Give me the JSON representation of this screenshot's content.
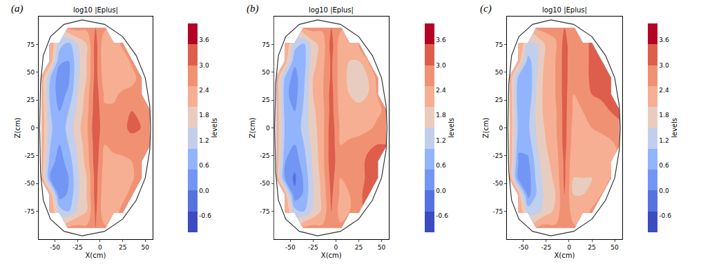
{
  "chart_data": [
    {
      "type": "contour",
      "panel": "(a)",
      "title": "log10 |Eplus|",
      "x_label": "X(cm)",
      "y_label": "Z(cm)",
      "xlim": [
        -68,
        58
      ],
      "ylim": [
        -100,
        100
      ],
      "xticks": [
        -50,
        -25,
        0,
        25,
        50
      ],
      "yticks": [
        -75,
        -50,
        -25,
        0,
        25,
        50,
        75
      ],
      "x": [
        -65,
        -55,
        -45,
        -35,
        -25,
        -15,
        -5,
        5,
        15,
        25,
        35,
        45,
        55
      ],
      "y": [
        -90,
        -75,
        -60,
        -45,
        -30,
        -15,
        0,
        15,
        30,
        45,
        60,
        75,
        90
      ],
      "cells": [
        [
          null,
          null,
          null,
          2.6,
          2.7,
          2.6,
          3.0,
          2.6,
          null,
          null,
          null,
          null,
          null
        ],
        [
          null,
          2.5,
          1.3,
          1.0,
          1.6,
          2.0,
          3.1,
          2.1,
          2.2,
          2.7,
          null,
          null,
          null
        ],
        [
          null,
          2.3,
          0.2,
          0.6,
          1.4,
          2.0,
          3.2,
          2.1,
          2.1,
          2.3,
          2.7,
          null,
          null
        ],
        [
          2.4,
          0.4,
          0.0,
          0.5,
          1.4,
          2.0,
          3.2,
          2.2,
          2.2,
          2.3,
          2.4,
          2.8,
          null
        ],
        [
          2.4,
          0.7,
          0.3,
          0.7,
          1.5,
          2.2,
          3.3,
          2.3,
          2.4,
          2.4,
          2.5,
          2.7,
          null
        ],
        [
          2.4,
          1.0,
          0.5,
          1.0,
          1.6,
          2.3,
          3.3,
          2.5,
          2.6,
          2.7,
          2.8,
          2.8,
          2.7
        ],
        [
          2.4,
          1.1,
          0.6,
          1.2,
          1.8,
          2.4,
          3.4,
          2.6,
          2.7,
          2.9,
          3.1,
          3.0,
          2.8
        ],
        [
          2.4,
          1.0,
          0.5,
          1.0,
          1.6,
          2.3,
          3.3,
          2.6,
          2.6,
          2.8,
          3.0,
          2.9,
          2.7
        ],
        [
          2.4,
          0.8,
          0.3,
          0.6,
          1.5,
          2.2,
          3.3,
          2.4,
          2.4,
          2.6,
          2.7,
          2.8,
          null
        ],
        [
          2.4,
          1.0,
          0.2,
          0.4,
          1.4,
          2.0,
          3.2,
          2.2,
          2.1,
          2.2,
          2.3,
          2.7,
          null
        ],
        [
          null,
          2.3,
          0.6,
          0.5,
          1.3,
          2.0,
          3.2,
          2.1,
          2.0,
          2.2,
          2.6,
          null,
          null
        ],
        [
          null,
          2.5,
          1.2,
          0.8,
          1.5,
          2.0,
          3.2,
          2.1,
          2.2,
          2.6,
          null,
          null,
          null
        ],
        [
          null,
          null,
          null,
          2.6,
          2.7,
          2.6,
          3.0,
          2.6,
          null,
          null,
          null,
          null,
          null
        ]
      ],
      "colorbar": {
        "title": "levels",
        "range": [
          -1.0,
          4.0
        ],
        "ticks": [
          -0.6,
          {
            "value": 0,
            "label": "0.0"
          },
          0.6,
          1.2,
          1.8,
          2.4,
          {
            "value": 3,
            "label": "3.0"
          },
          3.6
        ]
      },
      "boundary": {
        "x": [
          56,
          55,
          50,
          40,
          25,
          5,
          -20,
          -40,
          -55,
          -63,
          -66,
          -67,
          -66,
          -63,
          -55,
          -40,
          -20,
          5,
          25,
          40,
          50,
          55
        ],
        "y": [
          0,
          20,
          45,
          65,
          82,
          93,
          97,
          93,
          82,
          65,
          40,
          0,
          -40,
          -65,
          -82,
          -93,
          -97,
          -93,
          -82,
          -65,
          -45,
          -20
        ]
      }
    },
    {
      "type": "contour",
      "panel": "(b)",
      "title": "log10 |Eplus|",
      "x_label": "X(cm)",
      "y_label": "Z(cm)",
      "xlim": [
        -68,
        58
      ],
      "ylim": [
        -100,
        100
      ],
      "xticks": [
        -50,
        -25,
        0,
        25,
        50
      ],
      "yticks": [
        -75,
        -50,
        -25,
        0,
        25,
        50,
        75
      ],
      "x": [
        -65,
        -55,
        -45,
        -35,
        -25,
        -15,
        -5,
        5,
        15,
        25,
        35,
        45,
        55
      ],
      "y": [
        -90,
        -75,
        -60,
        -45,
        -30,
        -15,
        0,
        15,
        30,
        45,
        60,
        75,
        90
      ],
      "cells": [
        [
          null,
          null,
          null,
          2.6,
          2.7,
          2.6,
          2.9,
          2.6,
          null,
          null,
          null,
          null,
          null
        ],
        [
          null,
          2.5,
          1.2,
          1.0,
          1.6,
          2.1,
          3.0,
          2.3,
          2.5,
          2.9,
          null,
          null,
          null
        ],
        [
          null,
          2.2,
          0.1,
          0.6,
          1.5,
          2.1,
          3.1,
          2.4,
          2.5,
          2.8,
          3.3,
          null,
          null
        ],
        [
          2.4,
          0.3,
          -0.1,
          0.6,
          1.5,
          2.2,
          3.2,
          2.5,
          2.6,
          2.8,
          3.1,
          3.4,
          null
        ],
        [
          2.4,
          0.5,
          0.2,
          0.8,
          1.6,
          2.3,
          3.3,
          2.6,
          2.7,
          2.8,
          3.1,
          3.3,
          null
        ],
        [
          2.4,
          0.7,
          0.5,
          1.0,
          1.7,
          2.3,
          3.3,
          2.5,
          2.6,
          2.7,
          2.9,
          3.0,
          3.0
        ],
        [
          2.4,
          0.8,
          0.6,
          1.2,
          1.8,
          2.3,
          3.3,
          2.4,
          2.3,
          2.3,
          2.4,
          2.6,
          2.8
        ],
        [
          2.4,
          0.7,
          0.5,
          1.1,
          1.9,
          2.3,
          3.2,
          2.3,
          2.1,
          2.1,
          2.2,
          2.4,
          2.6
        ],
        [
          2.4,
          0.6,
          0.3,
          1.0,
          2.0,
          2.4,
          3.2,
          2.2,
          2.0,
          1.9,
          2.0,
          2.5,
          null
        ],
        [
          2.4,
          0.8,
          0.3,
          0.9,
          2.0,
          2.4,
          3.1,
          2.2,
          1.9,
          1.9,
          2.0,
          2.6,
          null
        ],
        [
          null,
          2.2,
          0.6,
          0.8,
          1.8,
          2.3,
          3.1,
          2.2,
          2.0,
          2.0,
          2.5,
          null,
          null
        ],
        [
          null,
          2.5,
          1.2,
          0.9,
          1.8,
          2.2,
          3.2,
          2.2,
          2.2,
          2.5,
          null,
          null,
          null
        ],
        [
          null,
          null,
          null,
          2.6,
          2.7,
          2.6,
          3.0,
          2.6,
          null,
          null,
          null,
          null,
          null
        ]
      ],
      "colorbar": {
        "title": "levels",
        "range": [
          -1.0,
          4.0
        ],
        "ticks": [
          -0.6,
          {
            "value": 0,
            "label": "0.0"
          },
          0.6,
          1.2,
          1.8,
          2.4,
          {
            "value": 3,
            "label": "3.0"
          },
          3.6
        ]
      },
      "boundary": {
        "x": [
          56,
          55,
          50,
          40,
          25,
          5,
          -20,
          -40,
          -55,
          -63,
          -66,
          -67,
          -66,
          -63,
          -55,
          -40,
          -20,
          5,
          25,
          40,
          50,
          55
        ],
        "y": [
          0,
          20,
          45,
          65,
          82,
          93,
          97,
          93,
          82,
          65,
          40,
          0,
          -40,
          -65,
          -82,
          -93,
          -97,
          -93,
          -82,
          -65,
          -45,
          -20
        ]
      }
    },
    {
      "type": "contour",
      "panel": "(c)",
      "title": "log10 |Eplus|",
      "x_label": "X(cm)",
      "y_label": "Z(cm)",
      "xlim": [
        -68,
        58
      ],
      "ylim": [
        -100,
        100
      ],
      "xticks": [
        -50,
        -25,
        0,
        25,
        50
      ],
      "yticks": [
        -75,
        -50,
        -25,
        0,
        25,
        50,
        75
      ],
      "x": [
        -65,
        -55,
        -45,
        -35,
        -25,
        -15,
        -5,
        5,
        15,
        25,
        35,
        45,
        55
      ],
      "y": [
        -90,
        -75,
        -60,
        -45,
        -30,
        -15,
        0,
        15,
        30,
        45,
        60,
        75,
        90
      ],
      "cells": [
        [
          null,
          null,
          null,
          2.6,
          2.7,
          2.6,
          2.9,
          2.6,
          null,
          null,
          null,
          null,
          null
        ],
        [
          null,
          2.5,
          1.3,
          1.3,
          1.8,
          2.1,
          3.0,
          2.2,
          2.2,
          2.6,
          null,
          null,
          null
        ],
        [
          null,
          2.2,
          0.3,
          1.1,
          1.7,
          2.0,
          3.0,
          2.0,
          2.0,
          2.1,
          2.5,
          null,
          null
        ],
        [
          2.4,
          0.2,
          0.2,
          1.2,
          1.8,
          2.1,
          3.1,
          2.0,
          2.0,
          2.0,
          2.1,
          2.5,
          null
        ],
        [
          2.4,
          0.4,
          0.4,
          1.3,
          1.9,
          2.2,
          3.1,
          2.1,
          2.1,
          2.1,
          2.2,
          2.4,
          null
        ],
        [
          2.4,
          0.6,
          0.7,
          1.5,
          2.0,
          2.3,
          3.2,
          2.2,
          2.2,
          2.3,
          2.3,
          2.4,
          2.6
        ],
        [
          2.4,
          0.8,
          0.9,
          1.6,
          2.1,
          2.4,
          3.2,
          2.3,
          2.4,
          2.5,
          2.6,
          2.7,
          2.9
        ],
        [
          2.4,
          0.7,
          0.8,
          1.7,
          2.2,
          2.4,
          3.2,
          2.4,
          2.5,
          2.7,
          2.8,
          3.0,
          3.1
        ],
        [
          2.4,
          0.6,
          0.6,
          1.6,
          2.3,
          2.5,
          3.2,
          2.5,
          2.7,
          3.0,
          3.1,
          3.3,
          null
        ],
        [
          2.4,
          0.8,
          0.6,
          1.5,
          2.3,
          2.5,
          3.2,
          2.6,
          2.8,
          3.1,
          3.3,
          3.4,
          null
        ],
        [
          null,
          2.2,
          0.8,
          1.4,
          2.2,
          2.5,
          3.2,
          2.6,
          2.8,
          3.1,
          3.3,
          null,
          null
        ],
        [
          null,
          2.5,
          1.4,
          1.5,
          2.1,
          2.4,
          3.2,
          2.6,
          2.8,
          3.1,
          null,
          null,
          null
        ],
        [
          null,
          null,
          null,
          2.6,
          2.7,
          2.7,
          3.0,
          2.8,
          null,
          null,
          null,
          null,
          null
        ]
      ],
      "colorbar": {
        "title": "levels",
        "range": [
          -1.0,
          4.0
        ],
        "ticks": [
          -0.6,
          {
            "value": 0,
            "label": "0.0"
          },
          0.6,
          1.2,
          1.8,
          2.4,
          {
            "value": 3,
            "label": "3.0"
          },
          3.6
        ]
      },
      "boundary": {
        "x": [
          56,
          55,
          50,
          40,
          25,
          5,
          -20,
          -40,
          -55,
          -63,
          -66,
          -67,
          -66,
          -63,
          -55,
          -40,
          -20,
          5,
          25,
          40,
          50,
          55
        ],
        "y": [
          0,
          20,
          45,
          65,
          82,
          93,
          97,
          93,
          82,
          65,
          40,
          0,
          -40,
          -65,
          -82,
          -93,
          -97,
          -93,
          -82,
          -65,
          -45,
          -20
        ]
      }
    }
  ]
}
